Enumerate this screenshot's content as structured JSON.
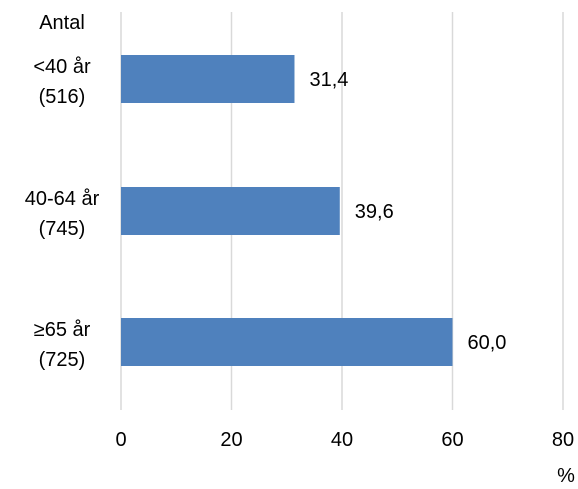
{
  "chart_data": {
    "type": "bar",
    "orientation": "horizontal",
    "categories": [
      {
        "line1": "<40 år",
        "line2": "(516)"
      },
      {
        "line1": "40-64 år",
        "line2": "(745)"
      },
      {
        "line1": "≥65 år",
        "line2": "(725)"
      }
    ],
    "values": [
      31.4,
      39.6,
      60.0
    ],
    "value_labels": [
      "31,4",
      "39,6",
      "60,0"
    ],
    "category_axis_title": "Antal",
    "xlabel": "%",
    "xlim": [
      0,
      80
    ],
    "xticks": [
      0,
      20,
      40,
      60,
      80
    ],
    "grid": true,
    "bar_color": "#4f81bd",
    "grid_color": "#d9d9d9"
  }
}
